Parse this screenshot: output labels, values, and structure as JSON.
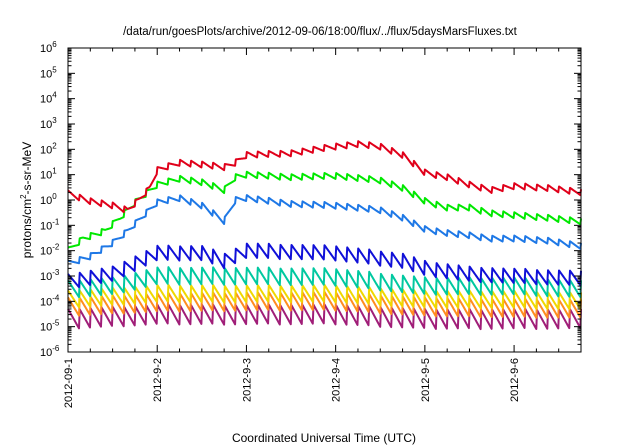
{
  "chart_data": {
    "type": "line",
    "title": "/data/run/goesPlots/archive/2012-09-06/18:00/flux/../flux/5daysMarsFluxes.txt",
    "xlabel": "Coordinated Universal Time (UTC)",
    "ylabel": {
      "prefix": "protons/cm",
      "sup": "2",
      "suffix": "-s-sr-MeV"
    },
    "yscale": "log",
    "ylim": [
      1e-06,
      1000000.0
    ],
    "y_ticks": [
      {
        "value": -6,
        "base": "10",
        "exp": "-6"
      },
      {
        "value": -5,
        "base": "10",
        "exp": "-5"
      },
      {
        "value": -4,
        "base": "10",
        "exp": "-4"
      },
      {
        "value": -3,
        "base": "10",
        "exp": "-3"
      },
      {
        "value": -2,
        "base": "10",
        "exp": "-2"
      },
      {
        "value": -1,
        "base": "10",
        "exp": "-1"
      },
      {
        "value": 0,
        "base": "10",
        "exp": "0"
      },
      {
        "value": 1,
        "base": "10",
        "exp": "1"
      },
      {
        "value": 2,
        "base": "10",
        "exp": "2"
      },
      {
        "value": 3,
        "base": "10",
        "exp": "3"
      },
      {
        "value": 4,
        "base": "10",
        "exp": "4"
      },
      {
        "value": 5,
        "base": "10",
        "exp": "5"
      },
      {
        "value": 6,
        "base": "10",
        "exp": "6"
      }
    ],
    "xlim": [
      "2012-09-01",
      "2012-09-06T18:00"
    ],
    "x_ticks": [
      {
        "date": "2012-09-01",
        "label": "2012-09-1"
      },
      {
        "date": "2012-09-02",
        "label": "2012-9-2"
      },
      {
        "date": "2012-09-03",
        "label": "2012-9-3"
      },
      {
        "date": "2012-09-04",
        "label": "2012-9-4"
      },
      {
        "date": "2012-09-05",
        "label": "2012-9-5"
      },
      {
        "date": "2012-09-06",
        "label": "2012-9-6"
      }
    ],
    "grid": false,
    "legend": "none",
    "series": [
      {
        "color": "#e0001a",
        "sawtooth_period_days": 0.125,
        "points": [
          [
            "2012-09-01T00:00",
            1.8
          ],
          [
            "2012-09-01T06:00",
            0.9
          ],
          [
            "2012-09-01T12:00",
            0.6
          ],
          [
            "2012-09-01T16:00",
            0.4
          ],
          [
            "2012-09-01T19:00",
            1.0
          ],
          [
            "2012-09-01T22:00",
            3
          ],
          [
            "2012-09-02T00:00",
            15
          ],
          [
            "2012-09-02T06:00",
            30
          ],
          [
            "2012-09-02T12:00",
            25
          ],
          [
            "2012-09-02T18:00",
            20
          ],
          [
            "2012-09-02T21:00",
            30
          ],
          [
            "2012-09-03T00:00",
            60
          ],
          [
            "2012-09-03T12:00",
            70
          ],
          [
            "2012-09-04T00:00",
            130
          ],
          [
            "2012-09-04T06:00",
            160
          ],
          [
            "2012-09-04T12:00",
            130
          ],
          [
            "2012-09-04T18:00",
            60
          ],
          [
            "2012-09-05T00:00",
            12
          ],
          [
            "2012-09-05T06:00",
            8
          ],
          [
            "2012-09-05T12:00",
            4
          ],
          [
            "2012-09-05T18:00",
            2.5
          ],
          [
            "2012-09-06T00:00",
            3.5
          ],
          [
            "2012-09-06T09:00",
            3
          ],
          [
            "2012-09-06T18:00",
            2
          ]
        ]
      },
      {
        "color": "#00e800",
        "sawtooth_period_days": 0.125,
        "points": [
          [
            "2012-09-01T00:00",
            0.01
          ],
          [
            "2012-09-01T04:00",
            0.03
          ],
          [
            "2012-09-01T10:00",
            0.06
          ],
          [
            "2012-09-01T14:00",
            0.2
          ],
          [
            "2012-09-01T18:00",
            0.8
          ],
          [
            "2012-09-02T00:00",
            4
          ],
          [
            "2012-09-02T06:00",
            7
          ],
          [
            "2012-09-02T12:00",
            5
          ],
          [
            "2012-09-02T18:00",
            2.5
          ],
          [
            "2012-09-02T21:00",
            8
          ],
          [
            "2012-09-03T00:00",
            10
          ],
          [
            "2012-09-03T12:00",
            8
          ],
          [
            "2012-09-04T00:00",
            9
          ],
          [
            "2012-09-04T12:00",
            6
          ],
          [
            "2012-09-04T18:00",
            3
          ],
          [
            "2012-09-05T00:00",
            0.9
          ],
          [
            "2012-09-05T06:00",
            0.5
          ],
          [
            "2012-09-05T12:00",
            0.5
          ],
          [
            "2012-09-05T18:00",
            0.3
          ],
          [
            "2012-09-06T00:00",
            0.25
          ],
          [
            "2012-09-06T09:00",
            0.2
          ],
          [
            "2012-09-06T18:00",
            0.14
          ]
        ]
      },
      {
        "color": "#1e78e6",
        "sawtooth_period_days": 0.125,
        "points": [
          [
            "2012-09-01T00:00",
            0.003
          ],
          [
            "2012-09-01T06:00",
            0.006
          ],
          [
            "2012-09-01T12:00",
            0.02
          ],
          [
            "2012-09-01T16:00",
            0.06
          ],
          [
            "2012-09-02T00:00",
            0.8
          ],
          [
            "2012-09-02T06:00",
            1.2
          ],
          [
            "2012-09-02T12:00",
            0.6
          ],
          [
            "2012-09-02T18:00",
            0.15
          ],
          [
            "2012-09-02T21:00",
            1.0
          ],
          [
            "2012-09-03T00:00",
            1.2
          ],
          [
            "2012-09-03T12:00",
            0.7
          ],
          [
            "2012-09-04T00:00",
            0.6
          ],
          [
            "2012-09-04T12:00",
            0.4
          ],
          [
            "2012-09-04T18:00",
            0.2
          ],
          [
            "2012-09-05T00:00",
            0.07
          ],
          [
            "2012-09-05T06:00",
            0.05
          ],
          [
            "2012-09-05T12:00",
            0.04
          ],
          [
            "2012-09-05T18:00",
            0.03
          ],
          [
            "2012-09-06T00:00",
            0.03
          ],
          [
            "2012-09-06T09:00",
            0.025
          ],
          [
            "2012-09-06T18:00",
            0.015
          ]
        ]
      },
      {
        "color": "#1010d8",
        "sawtooth_period_days": 0.125,
        "sawtooth_amplitude_decades": 0.6,
        "points": [
          [
            "2012-09-01T00:00",
            0.0006
          ],
          [
            "2012-09-01T12:00",
            0.0012
          ],
          [
            "2012-09-02T00:00",
            0.008
          ],
          [
            "2012-09-02T12:00",
            0.008
          ],
          [
            "2012-09-02T18:00",
            0.004
          ],
          [
            "2012-09-03T00:00",
            0.01
          ],
          [
            "2012-09-04T00:00",
            0.008
          ],
          [
            "2012-09-04T18:00",
            0.004
          ],
          [
            "2012-09-05T00:00",
            0.002
          ],
          [
            "2012-09-05T12:00",
            0.0012
          ],
          [
            "2012-09-06T00:00",
            0.001
          ],
          [
            "2012-09-06T18:00",
            0.0008
          ]
        ]
      },
      {
        "color": "#00c8a0",
        "sawtooth_period_days": 0.125,
        "sawtooth_amplitude_decades": 0.7,
        "points": [
          [
            "2012-09-01T00:00",
            0.0003
          ],
          [
            "2012-09-01T12:00",
            0.0004
          ],
          [
            "2012-09-02T00:00",
            0.001
          ],
          [
            "2012-09-03T00:00",
            0.001
          ],
          [
            "2012-09-04T00:00",
            0.0009
          ],
          [
            "2012-09-05T00:00",
            0.0004
          ],
          [
            "2012-09-06T00:00",
            0.0004
          ],
          [
            "2012-09-06T18:00",
            0.0003
          ]
        ]
      },
      {
        "color": "#f0d800",
        "sawtooth_period_days": 0.125,
        "sawtooth_amplitude_decades": 0.7,
        "points": [
          [
            "2012-09-01T00:00",
            0.00012
          ],
          [
            "2012-09-02T00:00",
            0.0002
          ],
          [
            "2012-09-03T00:00",
            0.0002
          ],
          [
            "2012-09-04T00:00",
            0.0002
          ],
          [
            "2012-09-05T00:00",
            0.00012
          ],
          [
            "2012-09-06T00:00",
            0.00012
          ],
          [
            "2012-09-06T18:00",
            0.0001
          ]
        ]
      },
      {
        "color": "#ff8c20",
        "sawtooth_period_days": 0.125,
        "sawtooth_amplitude_decades": 0.75,
        "points": [
          [
            "2012-09-01T00:00",
            6e-05
          ],
          [
            "2012-09-02T00:00",
            9e-05
          ],
          [
            "2012-09-03T00:00",
            0.0001
          ],
          [
            "2012-09-04T00:00",
            0.0001
          ],
          [
            "2012-09-05T00:00",
            6e-05
          ],
          [
            "2012-09-06T18:00",
            5e-05
          ]
        ]
      },
      {
        "color": "#a01e78",
        "sawtooth_period_days": 0.125,
        "sawtooth_amplitude_decades": 0.8,
        "points": [
          [
            "2012-09-01T00:00",
            2e-05
          ],
          [
            "2012-09-02T00:00",
            3e-05
          ],
          [
            "2012-09-03T00:00",
            3e-05
          ],
          [
            "2012-09-04T00:00",
            3e-05
          ],
          [
            "2012-09-05T00:00",
            2e-05
          ],
          [
            "2012-09-06T18:00",
            2e-05
          ]
        ]
      }
    ]
  }
}
